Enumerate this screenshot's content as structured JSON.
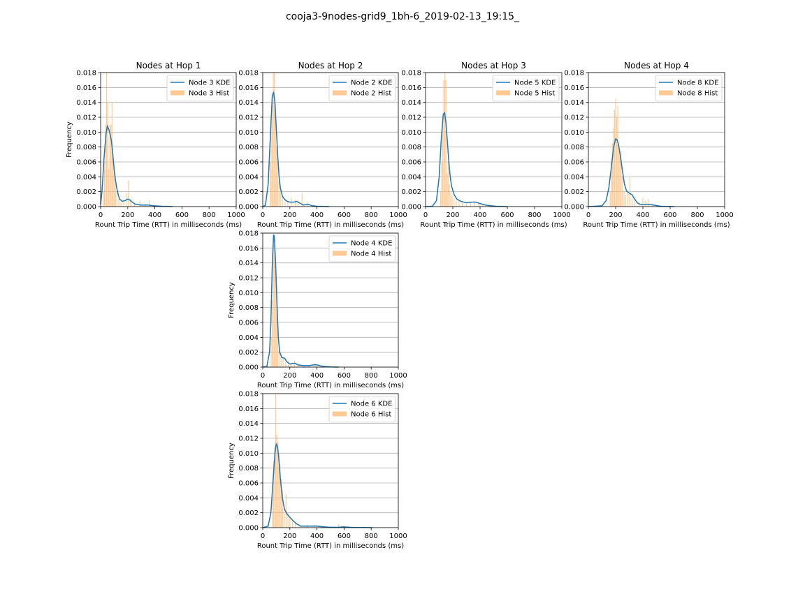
{
  "figure": {
    "title": "cooja3-9nodes-grid9_1bh-6_2019-02-13_19:15_",
    "colors": {
      "kde": "#1f77b4",
      "hist": "#ffbb78",
      "grid": "#b0b0b0"
    }
  },
  "chart_data": [
    {
      "type": "area",
      "title": "Nodes at Hop 1",
      "xlabel": "Rount Trip Time (RTT) in milliseconds (ms)",
      "ylabel": "Frequency",
      "xlim": [
        0,
        1000
      ],
      "ylim": [
        0,
        0.018
      ],
      "xticks": [
        "0",
        "200",
        "400",
        "600",
        "800",
        "1000"
      ],
      "yticks": [
        "0.000",
        "0.002",
        "0.004",
        "0.006",
        "0.008",
        "0.010",
        "0.012",
        "0.014",
        "0.016",
        "0.018"
      ],
      "grid": "y",
      "legend_position": "upper right",
      "series": [
        {
          "name": "Node 3 KDE",
          "kind": "kde",
          "x": [
            0,
            10,
            25,
            40,
            50,
            60,
            70,
            80,
            90,
            100,
            110,
            120,
            130,
            140,
            160,
            180,
            200,
            215,
            240,
            260,
            300,
            350,
            400,
            450,
            500,
            530
          ],
          "y": [
            0.0003,
            0.002,
            0.0065,
            0.0098,
            0.0108,
            0.0104,
            0.0097,
            0.0088,
            0.007,
            0.005,
            0.0035,
            0.0024,
            0.0016,
            0.001,
            0.0007,
            0.0008,
            0.001,
            0.0009,
            0.0005,
            0.0003,
            0.0002,
            0.0002,
            0.0001,
            5e-05,
            2e-05,
            0.0
          ]
        },
        {
          "name": "Node 3 Hist",
          "kind": "hist",
          "x": [
            20,
            28,
            36,
            44,
            52,
            60,
            68,
            76,
            84,
            92,
            100,
            110,
            120,
            135,
            150,
            170,
            190,
            205,
            220,
            250,
            290,
            330,
            360
          ],
          "y": [
            0.002,
            0.006,
            0.011,
            0.018,
            0.014,
            0.005,
            0.011,
            0.011,
            0.014,
            0.007,
            0.005,
            0.003,
            0.002,
            0.0012,
            0.0006,
            0.0006,
            0.0018,
            0.0035,
            0.001,
            0.0005,
            0.0008,
            0.0004,
            0.0009
          ]
        }
      ]
    },
    {
      "type": "area",
      "title": "Nodes at Hop 2",
      "xlabel": "Rount Trip Time (RTT) in milliseconds (ms)",
      "ylabel": "",
      "xlim": [
        0,
        1000
      ],
      "ylim": [
        0,
        0.018
      ],
      "xticks": [
        "0",
        "200",
        "400",
        "600",
        "800",
        "1000"
      ],
      "yticks": [
        "0.000",
        "0.002",
        "0.004",
        "0.006",
        "0.008",
        "0.010",
        "0.012",
        "0.014",
        "0.016",
        "0.018"
      ],
      "grid": "y",
      "legend_position": "upper right",
      "series": [
        {
          "name": "Node 2 KDE",
          "kind": "kde",
          "x": [
            0,
            20,
            40,
            55,
            70,
            80,
            90,
            100,
            110,
            120,
            130,
            145,
            160,
            180,
            200,
            230,
            250,
            280,
            300,
            330,
            370,
            400,
            450,
            490
          ],
          "y": [
            0.0,
            0.0002,
            0.003,
            0.009,
            0.0148,
            0.0154,
            0.014,
            0.0105,
            0.007,
            0.0042,
            0.0025,
            0.0014,
            0.001,
            0.0007,
            0.0006,
            0.0006,
            0.0007,
            0.0004,
            0.0002,
            0.0003,
            0.0001,
            5e-05,
            2e-05,
            0.0
          ]
        },
        {
          "name": "Node 2 Hist",
          "kind": "hist",
          "x": [
            55,
            62,
            70,
            78,
            86,
            94,
            102,
            110,
            120,
            130,
            145,
            165,
            185,
            210,
            240,
            260,
            290,
            330
          ],
          "y": [
            0.006,
            0.011,
            0.014,
            0.018,
            0.018,
            0.013,
            0.008,
            0.006,
            0.004,
            0.002,
            0.0015,
            0.001,
            0.0008,
            0.0012,
            0.0009,
            0.0009,
            0.0018,
            0.0006
          ]
        }
      ]
    },
    {
      "type": "area",
      "title": "Nodes at Hop 3",
      "xlabel": "Rount Trip Time (RTT) in milliseconds (ms)",
      "ylabel": "",
      "xlim": [
        0,
        1000
      ],
      "ylim": [
        0,
        0.018
      ],
      "xticks": [
        "0",
        "200",
        "400",
        "600",
        "800",
        "1000"
      ],
      "yticks": [
        "0.000",
        "0.002",
        "0.004",
        "0.006",
        "0.008",
        "0.010",
        "0.012",
        "0.014",
        "0.016",
        "0.018"
      ],
      "grid": "y",
      "legend_position": "upper right",
      "series": [
        {
          "name": "Node 5 KDE",
          "kind": "kde",
          "x": [
            0,
            50,
            80,
            100,
            115,
            130,
            140,
            150,
            160,
            170,
            180,
            190,
            210,
            230,
            260,
            300,
            340,
            370,
            400,
            440,
            480,
            520,
            560,
            600
          ],
          "y": [
            0.0,
            5e-05,
            0.0008,
            0.004,
            0.009,
            0.0124,
            0.0126,
            0.0112,
            0.0088,
            0.0062,
            0.0042,
            0.0028,
            0.0016,
            0.001,
            0.0007,
            0.0005,
            0.0006,
            0.0006,
            0.0004,
            0.0002,
            0.0001,
            5e-05,
            2e-05,
            0.0
          ]
        },
        {
          "name": "Node 5 Hist",
          "kind": "hist",
          "x": [
            110,
            118,
            126,
            134,
            142,
            150,
            158,
            166,
            175,
            185,
            195,
            210,
            225,
            245,
            270,
            300,
            330,
            360,
            390,
            420
          ],
          "y": [
            0.002,
            0.006,
            0.011,
            0.017,
            0.018,
            0.017,
            0.0045,
            0.006,
            0.003,
            0.002,
            0.0015,
            0.001,
            0.0008,
            0.0009,
            0.0005,
            0.0004,
            0.0006,
            0.0007,
            0.0005,
            0.0003
          ]
        }
      ]
    },
    {
      "type": "area",
      "title": "Nodes at Hop 4",
      "xlabel": "Rount Trip Time (RTT) in milliseconds (ms)",
      "ylabel": "",
      "xlim": [
        0,
        1000
      ],
      "ylim": [
        0,
        0.018
      ],
      "xticks": [
        "0",
        "200",
        "400",
        "600",
        "800",
        "1000"
      ],
      "yticks": [
        "0.000",
        "0.002",
        "0.004",
        "0.006",
        "0.008",
        "0.010",
        "0.012",
        "0.014",
        "0.016",
        "0.018"
      ],
      "grid": "y",
      "legend_position": "upper right",
      "series": [
        {
          "name": "Node 8 KDE",
          "kind": "kde",
          "x": [
            0,
            100,
            130,
            150,
            170,
            185,
            200,
            210,
            220,
            235,
            250,
            265,
            280,
            300,
            320,
            340,
            360,
            380,
            400,
            440,
            480,
            530,
            580,
            630
          ],
          "y": [
            0.0,
            0.0001,
            0.0008,
            0.0025,
            0.0055,
            0.008,
            0.0091,
            0.009,
            0.0084,
            0.0068,
            0.0048,
            0.003,
            0.0021,
            0.0018,
            0.0016,
            0.001,
            0.0005,
            0.0003,
            0.0003,
            0.0003,
            0.0002,
            5e-05,
            2e-05,
            0.0
          ]
        },
        {
          "name": "Node 8 Hist",
          "kind": "hist",
          "x": [
            160,
            168,
            176,
            184,
            192,
            200,
            208,
            216,
            224,
            232,
            240,
            250,
            262,
            275,
            290,
            305,
            320,
            340,
            370,
            400,
            420,
            440,
            470
          ],
          "y": [
            0.002,
            0.006,
            0.0085,
            0.0105,
            0.013,
            0.0145,
            0.012,
            0.0135,
            0.0085,
            0.007,
            0.0075,
            0.004,
            0.002,
            0.0015,
            0.002,
            0.004,
            0.0012,
            0.0008,
            0.0006,
            0.0012,
            0.0008,
            0.001,
            0.0004
          ]
        }
      ]
    },
    {
      "type": "area",
      "title": "",
      "xlabel": "Rount Trip Time (RTT) in milliseconds (ms)",
      "ylabel": "Frequency",
      "xlim": [
        0,
        1000
      ],
      "ylim": [
        0,
        0.018
      ],
      "xticks": [
        "0",
        "200",
        "400",
        "600",
        "800",
        "1000"
      ],
      "yticks": [
        "0.000",
        "0.002",
        "0.004",
        "0.006",
        "0.008",
        "0.010",
        "0.012",
        "0.014",
        "0.016",
        "0.018"
      ],
      "grid": "y",
      "legend_position": "upper right",
      "series": [
        {
          "name": "Node 4 KDE",
          "kind": "kde",
          "x": [
            0,
            30,
            50,
            60,
            70,
            80,
            85,
            95,
            105,
            115,
            125,
            140,
            160,
            180,
            200,
            220,
            240,
            260,
            300,
            340,
            380,
            400,
            440,
            500,
            560
          ],
          "y": [
            0.0,
            5e-05,
            0.002,
            0.006,
            0.0135,
            0.0178,
            0.0176,
            0.014,
            0.0085,
            0.004,
            0.002,
            0.0013,
            0.0012,
            0.0007,
            0.0004,
            0.0005,
            0.0005,
            0.0003,
            0.0002,
            0.0002,
            0.0003,
            0.0003,
            0.0001,
            2e-05,
            0.0
          ]
        },
        {
          "name": "Node 4 Hist",
          "kind": "hist",
          "x": [
            62,
            70,
            78,
            86,
            94,
            102,
            110,
            120,
            135,
            150,
            170,
            190,
            210,
            235,
            260,
            300,
            340,
            380,
            400
          ],
          "y": [
            0.004,
            0.009,
            0.0165,
            0.0165,
            0.014,
            0.01,
            0.006,
            0.003,
            0.002,
            0.0012,
            0.0012,
            0.0008,
            0.0006,
            0.0008,
            0.0005,
            0.0003,
            0.0003,
            0.0005,
            0.0004
          ]
        }
      ]
    },
    {
      "type": "area",
      "title": "",
      "xlabel": "Rount Trip Time (RTT) in milliseconds (ms)",
      "ylabel": "Frequency",
      "xlim": [
        0,
        1000
      ],
      "ylim": [
        0,
        0.018
      ],
      "xticks": [
        "0",
        "200",
        "400",
        "600",
        "800",
        "1000"
      ],
      "yticks": [
        "0.000",
        "0.002",
        "0.004",
        "0.006",
        "0.008",
        "0.010",
        "0.012",
        "0.014",
        "0.016",
        "0.018"
      ],
      "grid": "y",
      "legend_position": "upper right",
      "series": [
        {
          "name": "Node 6 KDE",
          "kind": "kde",
          "x": [
            0,
            40,
            60,
            75,
            90,
            100,
            110,
            120,
            130,
            145,
            160,
            180,
            200,
            220,
            250,
            280,
            300,
            350,
            400,
            450,
            500,
            550,
            600,
            650,
            700,
            750,
            810
          ],
          "y": [
            0.0,
            0.0002,
            0.002,
            0.006,
            0.01,
            0.0113,
            0.0108,
            0.009,
            0.0066,
            0.004,
            0.0025,
            0.0018,
            0.0014,
            0.001,
            0.0005,
            0.0002,
            0.0002,
            0.0002,
            0.0002,
            0.0001,
            5e-05,
            5e-05,
            0.0001,
            5e-05,
            2e-05,
            2e-05,
            0.0
          ]
        },
        {
          "name": "Node 6 Hist",
          "kind": "hist",
          "x": [
            72,
            80,
            88,
            96,
            104,
            112,
            120,
            128,
            136,
            146,
            158,
            172,
            186,
            200,
            220,
            240,
            270,
            330,
            380,
            420,
            560,
            580
          ],
          "y": [
            0.004,
            0.009,
            0.011,
            0.018,
            0.0125,
            0.0115,
            0.01,
            0.0085,
            0.0065,
            0.005,
            0.003,
            0.0045,
            0.002,
            0.0015,
            0.0012,
            0.0008,
            0.0005,
            0.0004,
            0.0004,
            0.0003,
            0.0005,
            0.0003
          ]
        }
      ]
    }
  ]
}
